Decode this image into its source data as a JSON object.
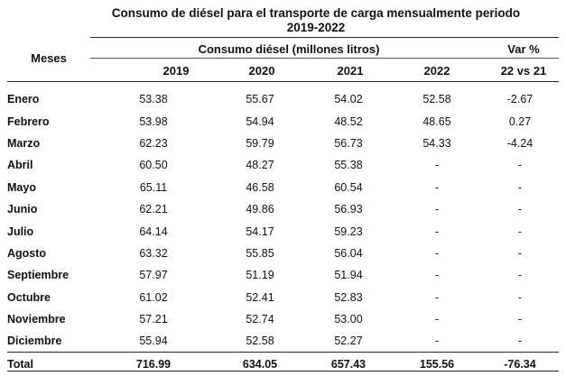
{
  "title": {
    "line1": "Consumo de diésel para el transporte de carga mensualmente periodo",
    "line2": "2019-2022"
  },
  "header": {
    "months_label": "Meses",
    "group_label": "Consumo diésel (millones litros)",
    "var_label": "Var %",
    "years": [
      "2019",
      "2020",
      "2021",
      "2022"
    ],
    "var_sub": "22 vs 21"
  },
  "rows": [
    {
      "month": "Enero",
      "y2019": "53.38",
      "y2020": "55.67",
      "y2021": "54.02",
      "y2022": "52.58",
      "var": "-2.67"
    },
    {
      "month": "Febrero",
      "y2019": "53.98",
      "y2020": "54.94",
      "y2021": "48.52",
      "y2022": "48.65",
      "var": "0.27"
    },
    {
      "month": "Marzo",
      "y2019": "62.23",
      "y2020": "59.79",
      "y2021": "56.73",
      "y2022": "54.33",
      "var": "-4.24"
    },
    {
      "month": "Abril",
      "y2019": "60.50",
      "y2020": "48.27",
      "y2021": "55.38",
      "y2022": "-",
      "var": "-"
    },
    {
      "month": "Mayo",
      "y2019": "65.11",
      "y2020": "46.58",
      "y2021": "60.54",
      "y2022": "-",
      "var": "-"
    },
    {
      "month": "Junio",
      "y2019": "62.21",
      "y2020": "49.86",
      "y2021": "56.93",
      "y2022": "-",
      "var": "-"
    },
    {
      "month": "Julio",
      "y2019": "64.14",
      "y2020": "54.17",
      "y2021": "59.23",
      "y2022": "-",
      "var": "-"
    },
    {
      "month": "Agosto",
      "y2019": "63.32",
      "y2020": "55.85",
      "y2021": "56.04",
      "y2022": "-",
      "var": "-"
    },
    {
      "month": "Septiembre",
      "y2019": "57.97",
      "y2020": "51.19",
      "y2021": "51.94",
      "y2022": "-",
      "var": "-"
    },
    {
      "month": "Octubre",
      "y2019": "61.02",
      "y2020": "52.41",
      "y2021": "52.83",
      "y2022": "-",
      "var": "-"
    },
    {
      "month": "Noviembre",
      "y2019": "57.21",
      "y2020": "52.74",
      "y2021": "53.00",
      "y2022": "-",
      "var": "-"
    },
    {
      "month": "Diciembre",
      "y2019": "55.94",
      "y2020": "52.58",
      "y2021": "52.27",
      "y2022": "-",
      "var": "-"
    }
  ],
  "total": {
    "month": "Total",
    "y2019": "716.99",
    "y2020": "634.05",
    "y2021": "657.43",
    "y2022": "155.56",
    "var": "-76.34"
  }
}
